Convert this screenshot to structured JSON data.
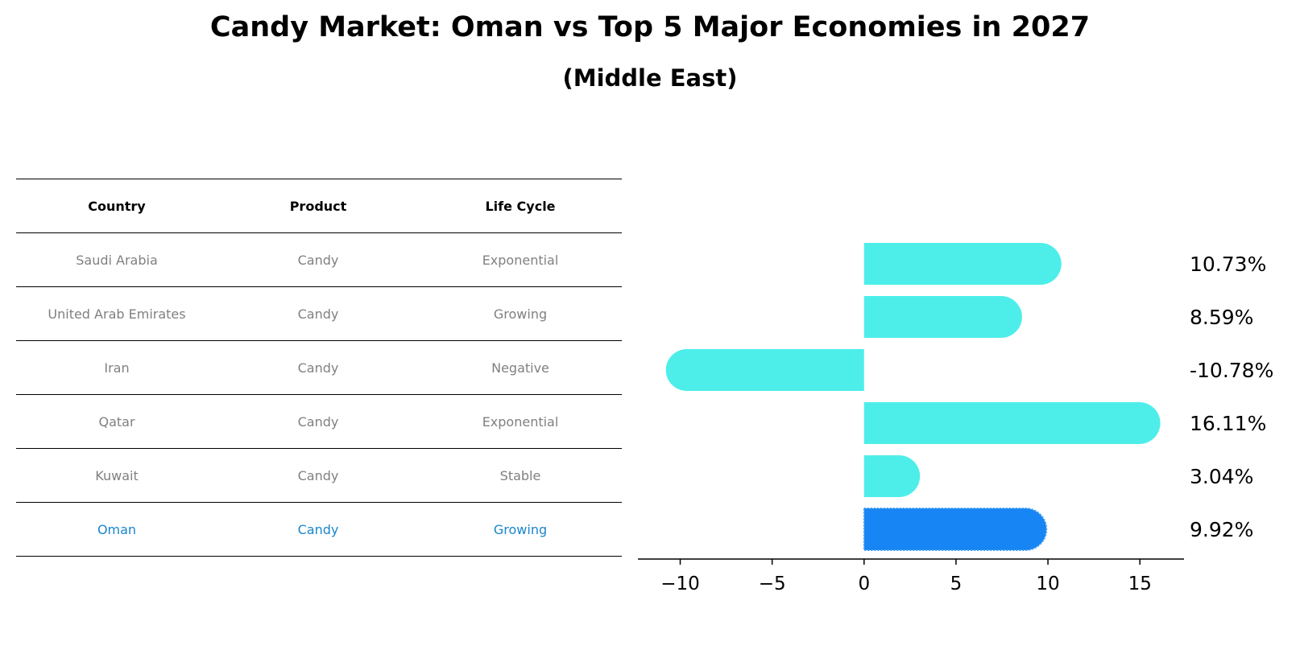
{
  "header": {
    "title": "Candy Market: Oman vs Top 5 Major Economies in 2027",
    "subtitle": "(Middle East)"
  },
  "table": {
    "columns": [
      "Country",
      "Product",
      "Life Cycle"
    ],
    "rows": [
      {
        "country": "Saudi Arabia",
        "product": "Candy",
        "life_cycle": "Exponential"
      },
      {
        "country": "United Arab Emirates",
        "product": "Candy",
        "life_cycle": "Growing"
      },
      {
        "country": "Iran",
        "product": "Candy",
        "life_cycle": "Negative"
      },
      {
        "country": "Qatar",
        "product": "Candy",
        "life_cycle": "Exponential"
      },
      {
        "country": "Kuwait",
        "product": "Candy",
        "life_cycle": "Stable"
      },
      {
        "country": "Oman",
        "product": "Candy",
        "life_cycle": "Growing"
      }
    ],
    "highlight_row": 5
  },
  "chart_data": {
    "type": "bar",
    "orientation": "horizontal",
    "categories": [
      "Saudi Arabia",
      "United Arab Emirates",
      "Iran",
      "Qatar",
      "Kuwait",
      "Oman"
    ],
    "values": [
      10.73,
      8.59,
      -10.78,
      16.11,
      3.04,
      9.92
    ],
    "value_labels": [
      "10.73%",
      "8.59%",
      "-10.78%",
      "16.11%",
      "3.04%",
      "9.92%"
    ],
    "xlim": [
      -12.3,
      17.4
    ],
    "xticks": [
      -10,
      -5,
      0,
      5,
      10,
      15
    ],
    "xtick_labels": [
      "−10",
      "−5",
      "0",
      "5",
      "10",
      "15"
    ],
    "bar_color": "#4deeea",
    "highlight_color": "#1785f3",
    "highlight_index": 5,
    "grid": false
  }
}
